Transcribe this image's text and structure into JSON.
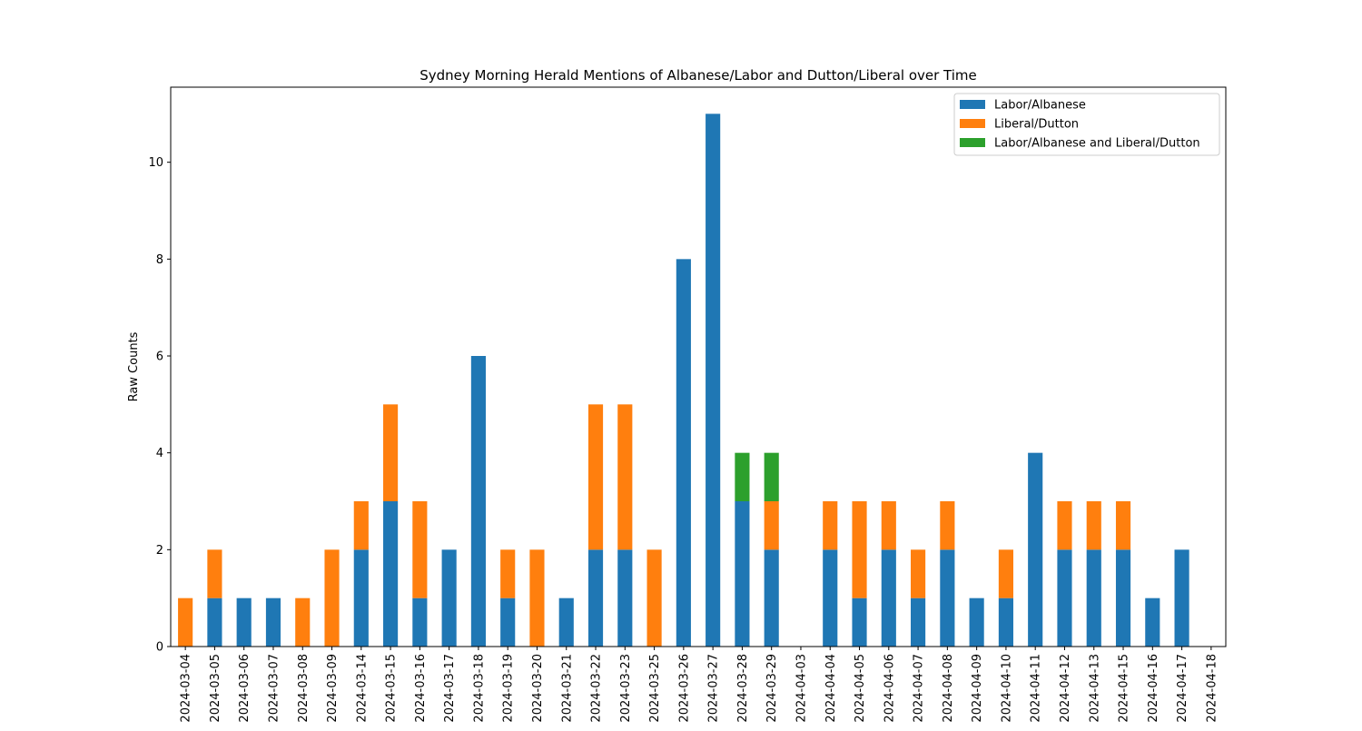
{
  "chart_data": {
    "type": "bar",
    "stacked": true,
    "title": "Sydney Morning Herald Mentions of Albanese/Labor and Dutton/Liberal over Time",
    "xlabel": "",
    "ylabel": "Raw Counts",
    "ylim": [
      0,
      11.55
    ],
    "yticks": [
      0,
      2,
      4,
      6,
      8,
      10
    ],
    "legend_position": "top-right",
    "grid": false,
    "categories": [
      "2024-03-04",
      "2024-03-05",
      "2024-03-06",
      "2024-03-07",
      "2024-03-08",
      "2024-03-09",
      "2024-03-14",
      "2024-03-15",
      "2024-03-16",
      "2024-03-17",
      "2024-03-18",
      "2024-03-19",
      "2024-03-20",
      "2024-03-21",
      "2024-03-22",
      "2024-03-23",
      "2024-03-25",
      "2024-03-26",
      "2024-03-27",
      "2024-03-28",
      "2024-03-29",
      "2024-04-03",
      "2024-04-04",
      "2024-04-05",
      "2024-04-06",
      "2024-04-07",
      "2024-04-08",
      "2024-04-09",
      "2024-04-10",
      "2024-04-11",
      "2024-04-12",
      "2024-04-13",
      "2024-04-15",
      "2024-04-16",
      "2024-04-17",
      "2024-04-18"
    ],
    "series": [
      {
        "name": "Labor/Albanese",
        "color": "#1f77b4",
        "values": [
          0,
          1,
          1,
          1,
          0,
          0,
          2,
          3,
          1,
          2,
          6,
          1,
          0,
          1,
          2,
          2,
          0,
          8,
          11,
          3,
          2,
          0,
          2,
          1,
          2,
          1,
          2,
          1,
          1,
          4,
          2,
          2,
          2,
          1,
          2,
          0
        ]
      },
      {
        "name": "Liberal/Dutton",
        "color": "#ff7f0e",
        "values": [
          1,
          1,
          0,
          0,
          1,
          2,
          1,
          2,
          2,
          0,
          0,
          1,
          2,
          0,
          3,
          3,
          2,
          0,
          0,
          0,
          1,
          0,
          1,
          2,
          1,
          1,
          1,
          0,
          1,
          0,
          1,
          1,
          1,
          0,
          0,
          0
        ]
      },
      {
        "name": "Labor/Albanese and Liberal/Dutton",
        "color": "#2ca02c",
        "values": [
          0,
          0,
          0,
          0,
          0,
          0,
          0,
          0,
          0,
          0,
          0,
          0,
          0,
          0,
          0,
          0,
          0,
          0,
          0,
          1,
          1,
          0,
          0,
          0,
          0,
          0,
          0,
          0,
          0,
          0,
          0,
          0,
          0,
          0,
          0,
          0
        ]
      }
    ]
  }
}
